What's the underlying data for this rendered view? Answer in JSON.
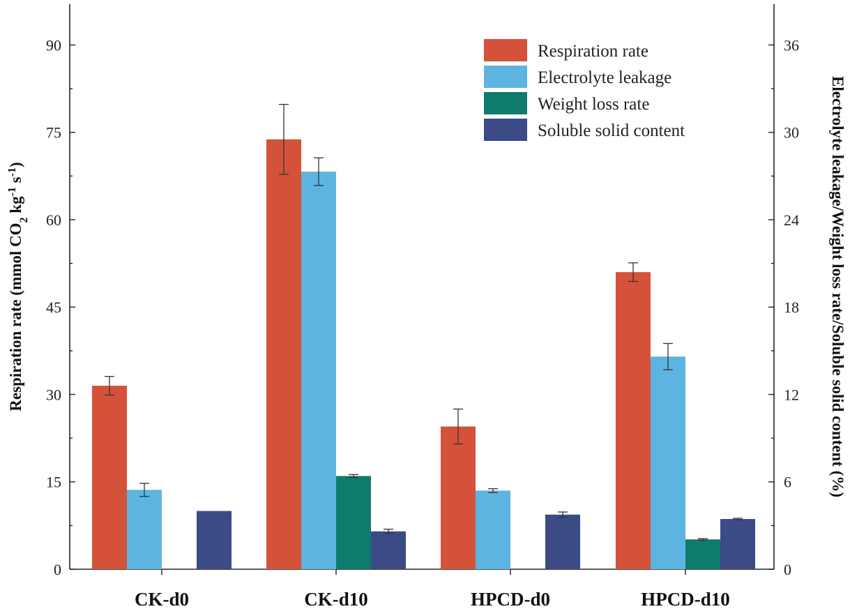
{
  "chart_data": {
    "type": "bar",
    "categories": [
      "CK-d0",
      "CK-d10",
      "HPCD-d0",
      "HPCD-d10"
    ],
    "left_axis": {
      "label_parts": [
        "Respiration rate (mmol CO",
        "2",
        " kg",
        "-1",
        " s",
        "-1",
        ")"
      ],
      "ylim": [
        0,
        97
      ],
      "ticks": [
        "0",
        "15",
        "30",
        "45",
        "60",
        "75",
        "90"
      ],
      "tick_values": [
        0,
        15,
        30,
        45,
        60,
        75,
        90
      ]
    },
    "right_axis": {
      "label": "Electrolyte leakage/Weight loss rate/Soluble solid content (%)",
      "ylim": [
        0,
        38.8
      ],
      "ticks": [
        "0",
        "6",
        "12",
        "18",
        "24",
        "30",
        "36"
      ],
      "tick_values": [
        0,
        6,
        12,
        18,
        24,
        30,
        36
      ]
    },
    "series": [
      {
        "name": "Respiration rate",
        "axis": "left",
        "color": "#d4523a",
        "values": [
          31.5,
          73.8,
          24.5,
          51.0
        ],
        "errors": [
          1.6,
          6.0,
          3.0,
          1.6
        ]
      },
      {
        "name": "Electrolyte leakage",
        "axis": "right",
        "color": "#5eb4e0",
        "values": [
          5.45,
          27.3,
          5.4,
          14.6
        ],
        "errors": [
          0.45,
          0.95,
          0.13,
          0.9
        ]
      },
      {
        "name": "Weight loss rate",
        "axis": "right",
        "color": "#0f7b6c",
        "values": [
          0,
          6.4,
          0,
          2.05
        ],
        "errors": [
          0,
          0.1,
          0,
          0.05
        ]
      },
      {
        "name": "Soluble solid content",
        "axis": "right",
        "color": "#3b4b86",
        "values": [
          4.0,
          2.6,
          3.75,
          3.45
        ],
        "errors": [
          0,
          0.15,
          0.18,
          0.05
        ]
      }
    ],
    "legend_position": "top-right",
    "grid": false
  }
}
